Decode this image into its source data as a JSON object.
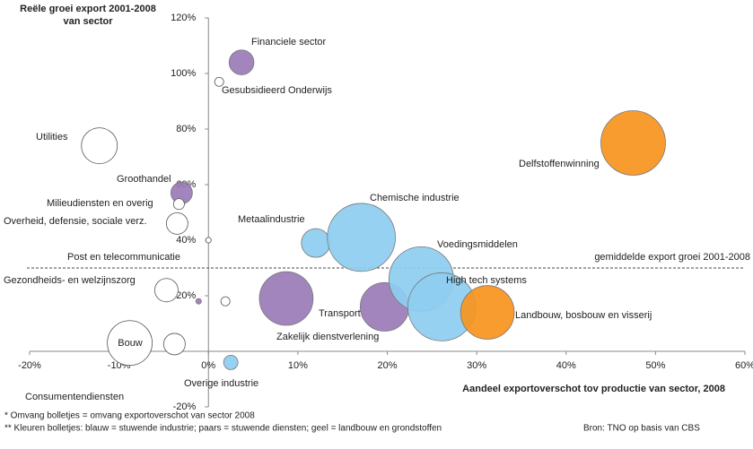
{
  "chart_data": {
    "type": "scatter",
    "ylabel": [
      "Reële groei export 2001-2008",
      "van sector"
    ],
    "xlabel": "Aandeel exportoverschot tov productie van sector, 2008",
    "xlim": [
      -20,
      60
    ],
    "ylim": [
      -20,
      120
    ],
    "xticks": [
      {
        "value": -20,
        "label": "-20%"
      },
      {
        "value": -10,
        "label": "-10%"
      },
      {
        "value": 0,
        "label": "0%"
      },
      {
        "value": 10,
        "label": "10%"
      },
      {
        "value": 20,
        "label": "20%"
      },
      {
        "value": 30,
        "label": "30%"
      },
      {
        "value": 40,
        "label": "40%"
      },
      {
        "value": 50,
        "label": "50%"
      },
      {
        "value": 60,
        "label": "60%"
      }
    ],
    "yticks": [
      {
        "value": -20,
        "label": "-20%"
      },
      {
        "value": 20,
        "label": "20%"
      },
      {
        "value": 40,
        "label": "40%"
      },
      {
        "value": 60,
        "label": "60%"
      },
      {
        "value": 80,
        "label": "80%"
      },
      {
        "value": 100,
        "label": "100%"
      },
      {
        "value": 120,
        "label": "120%"
      }
    ],
    "reference_line": {
      "value": 30,
      "label": "gemiddelde export groei 2001-2008"
    },
    "points": [
      {
        "label": "Financiele sector",
        "x": 3.7,
        "y": 104,
        "size": 12,
        "color": "#9b7bb8"
      },
      {
        "label": "Gesubsidieerd Onderwijs",
        "x": 1.2,
        "y": 97,
        "size": 1.6,
        "color": "#ffffff"
      },
      {
        "label": "Utilities",
        "x": -12.2,
        "y": 74,
        "size": 25,
        "color": "#ffffff"
      },
      {
        "label": "Groothandel",
        "x": -3.0,
        "y": 57,
        "size": 9,
        "color": "#9b7bb8"
      },
      {
        "label": "Milieudiensten en overig",
        "x": -3.3,
        "y": 53,
        "size": 2.3,
        "color": "#ffffff"
      },
      {
        "label": "Overheid, defensie, sociale verz.",
        "x": -3.5,
        "y": 46,
        "size": 9,
        "color": "#ffffff"
      },
      {
        "x": 0,
        "y": 40,
        "size": 0.6,
        "color": "#ffffff"
      },
      {
        "label": "Post en telecommunicatie",
        "x": -1.1,
        "y": 18,
        "size": 0.6,
        "color": "#9b7bb8"
      },
      {
        "label": "Gezondheids- en welzijnszorg",
        "x": -4.7,
        "y": 22,
        "size": 10.6,
        "color": "#ffffff"
      },
      {
        "x": 1.9,
        "y": 18,
        "size": 1.6,
        "color": "#ffffff"
      },
      {
        "label": "Bouw",
        "x": -8.8,
        "y": 3,
        "size": 39,
        "color": "#ffffff"
      },
      {
        "label": "Consumentendiensten",
        "x": -3.8,
        "y": 2.6,
        "size": 9,
        "color": "#ffffff"
      },
      {
        "label": "Overige industrie",
        "x": 2.5,
        "y": -4,
        "size": 4,
        "color": "#8ecdf0"
      },
      {
        "label": "Zakelijk dienstverlening",
        "x": 8.7,
        "y": 19,
        "size": 56,
        "color": "#9b7bb8"
      },
      {
        "label": "Metaalindustrie",
        "x": 12,
        "y": 39,
        "size": 16,
        "color": "#8ecdf0"
      },
      {
        "label": "Chemische industrie",
        "x": 17.1,
        "y": 41,
        "size": 90,
        "color": "#8ecdf0"
      },
      {
        "label": "Transport",
        "x": 19.7,
        "y": 16,
        "size": 46,
        "color": "#9b7bb8"
      },
      {
        "label": "Voedingsmiddelen",
        "x": 23.8,
        "y": 26,
        "size": 81,
        "color": "#8ecdf0"
      },
      {
        "label": "High tech systems",
        "x": 26.1,
        "y": 16,
        "size": 90,
        "color": "#8ecdf0"
      },
      {
        "label": "Landbouw, bosbouw en visserij",
        "x": 31.2,
        "y": 14,
        "size": 56,
        "color": "#f7941d"
      },
      {
        "label": "Delfstoffenwinning",
        "x": 47.5,
        "y": 75,
        "size": 81,
        "color": "#f7941d"
      }
    ],
    "footnotes": [
      "* Omvang bolletjes = omvang exportoverschot van sector 2008",
      "** Kleuren bolletjes: blauw = stuwende industrie; paars = stuwende diensten; geel = landbouw en grondstoffen"
    ],
    "source": "Bron: TNO op basis van CBS"
  }
}
